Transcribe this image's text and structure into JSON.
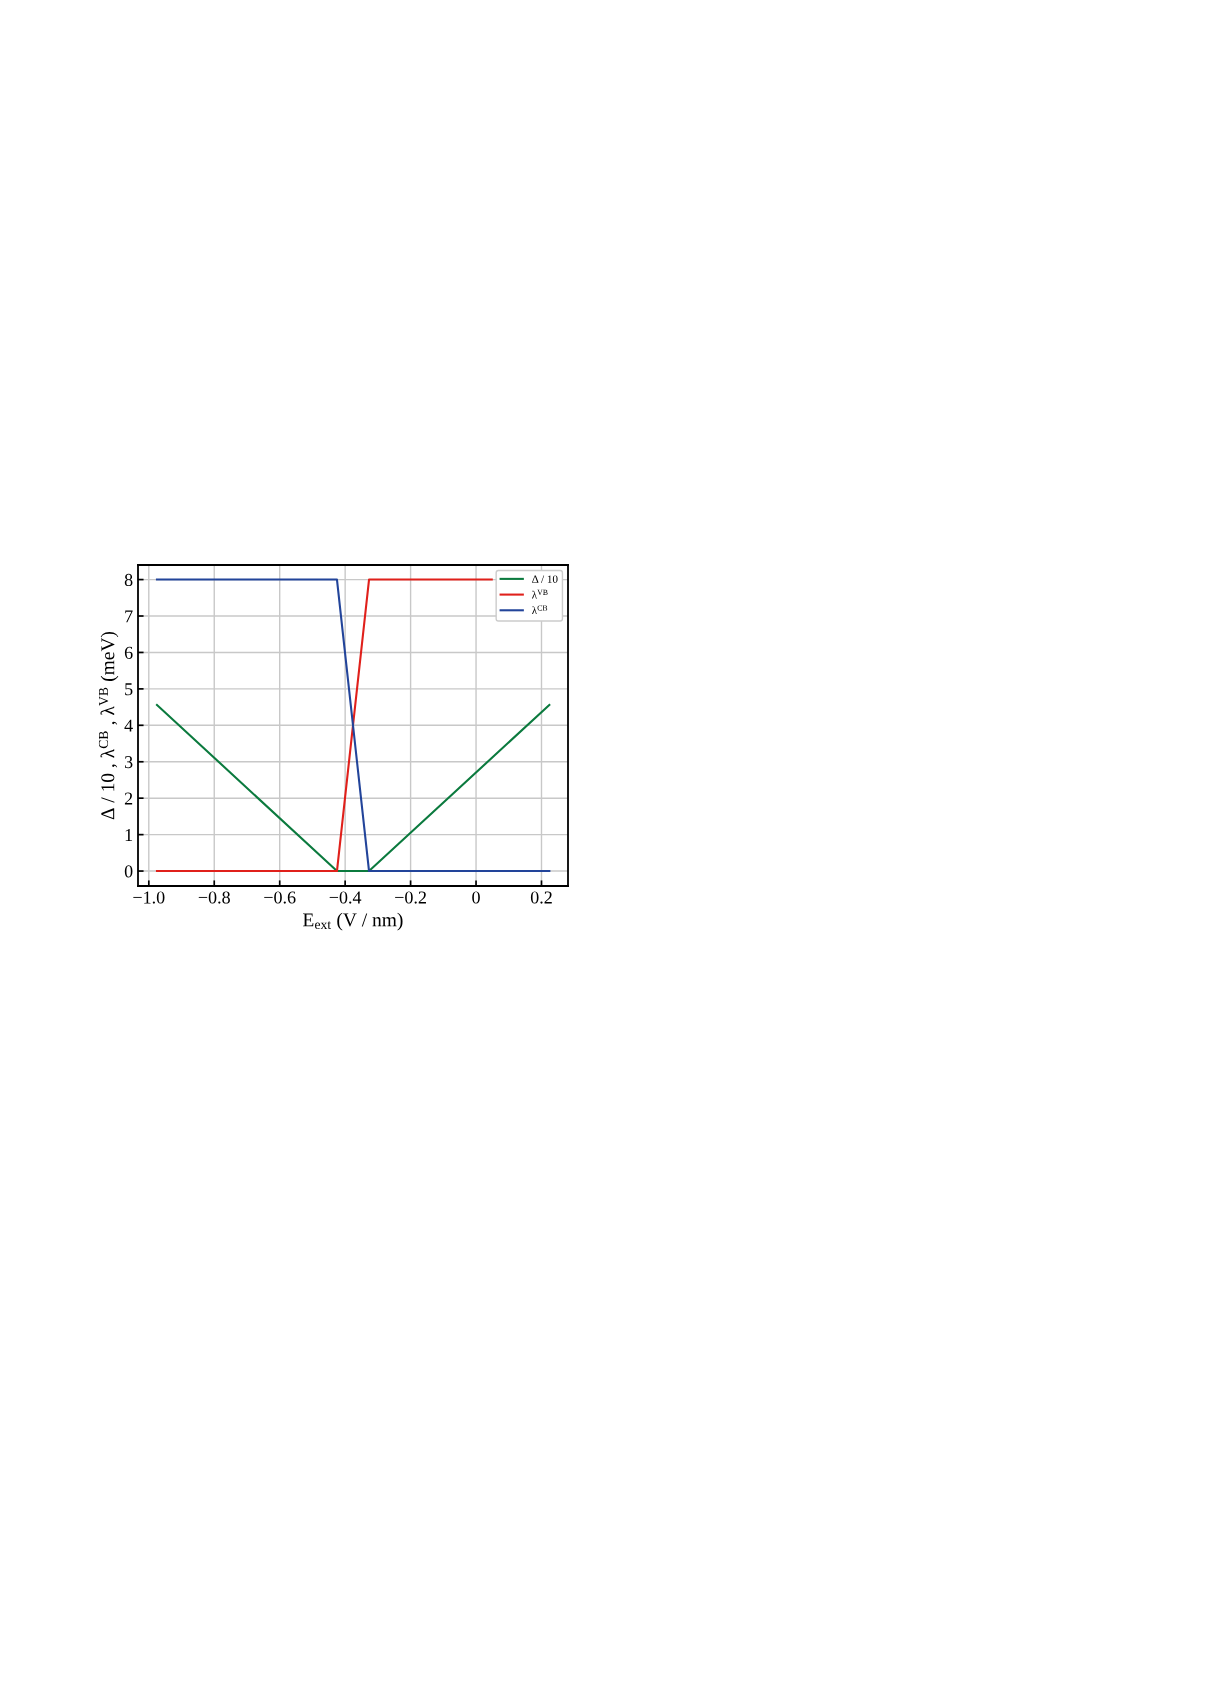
{
  "chart_data": {
    "type": "line",
    "xlabel": "E$_{ext}$ (V / nm)",
    "ylabel": "Δ / 10 , λ$^{CB}$ , λ$^{VB}$ (meV)",
    "xlim": [
      -1.033,
      0.281
    ],
    "ylim": [
      -0.41,
      8.4
    ],
    "xticks": [
      {
        "value": -1.0,
        "label": "−1.0"
      },
      {
        "value": -0.8,
        "label": "−0.8"
      },
      {
        "value": -0.6,
        "label": "−0.6"
      },
      {
        "value": -0.4,
        "label": "−0.4"
      },
      {
        "value": -0.2,
        "label": "−0.2"
      },
      0,
      0.2
    ],
    "yticks": [
      0,
      1,
      2,
      3,
      4,
      5,
      6,
      7,
      8
    ],
    "grid": true,
    "legend": "top right",
    "series": [
      {
        "name": "Δ / 10",
        "color": "#0b7a3e",
        "x": [
          -0.975,
          -0.425,
          -0.327,
          0.224
        ],
        "values": [
          4.56,
          0,
          0,
          4.56
        ]
      },
      {
        "name": "λ$^{VB}$",
        "color": "#e0201b",
        "x": [
          -0.975,
          -0.425,
          -0.327,
          0.048
        ],
        "values": [
          0,
          0,
          8,
          8
        ]
      },
      {
        "name": "λ$^{CB}$",
        "color": "#22449a",
        "x": [
          -0.975,
          -0.425,
          -0.327,
          0.224
        ],
        "values": [
          8,
          8,
          0,
          0
        ]
      }
    ]
  }
}
